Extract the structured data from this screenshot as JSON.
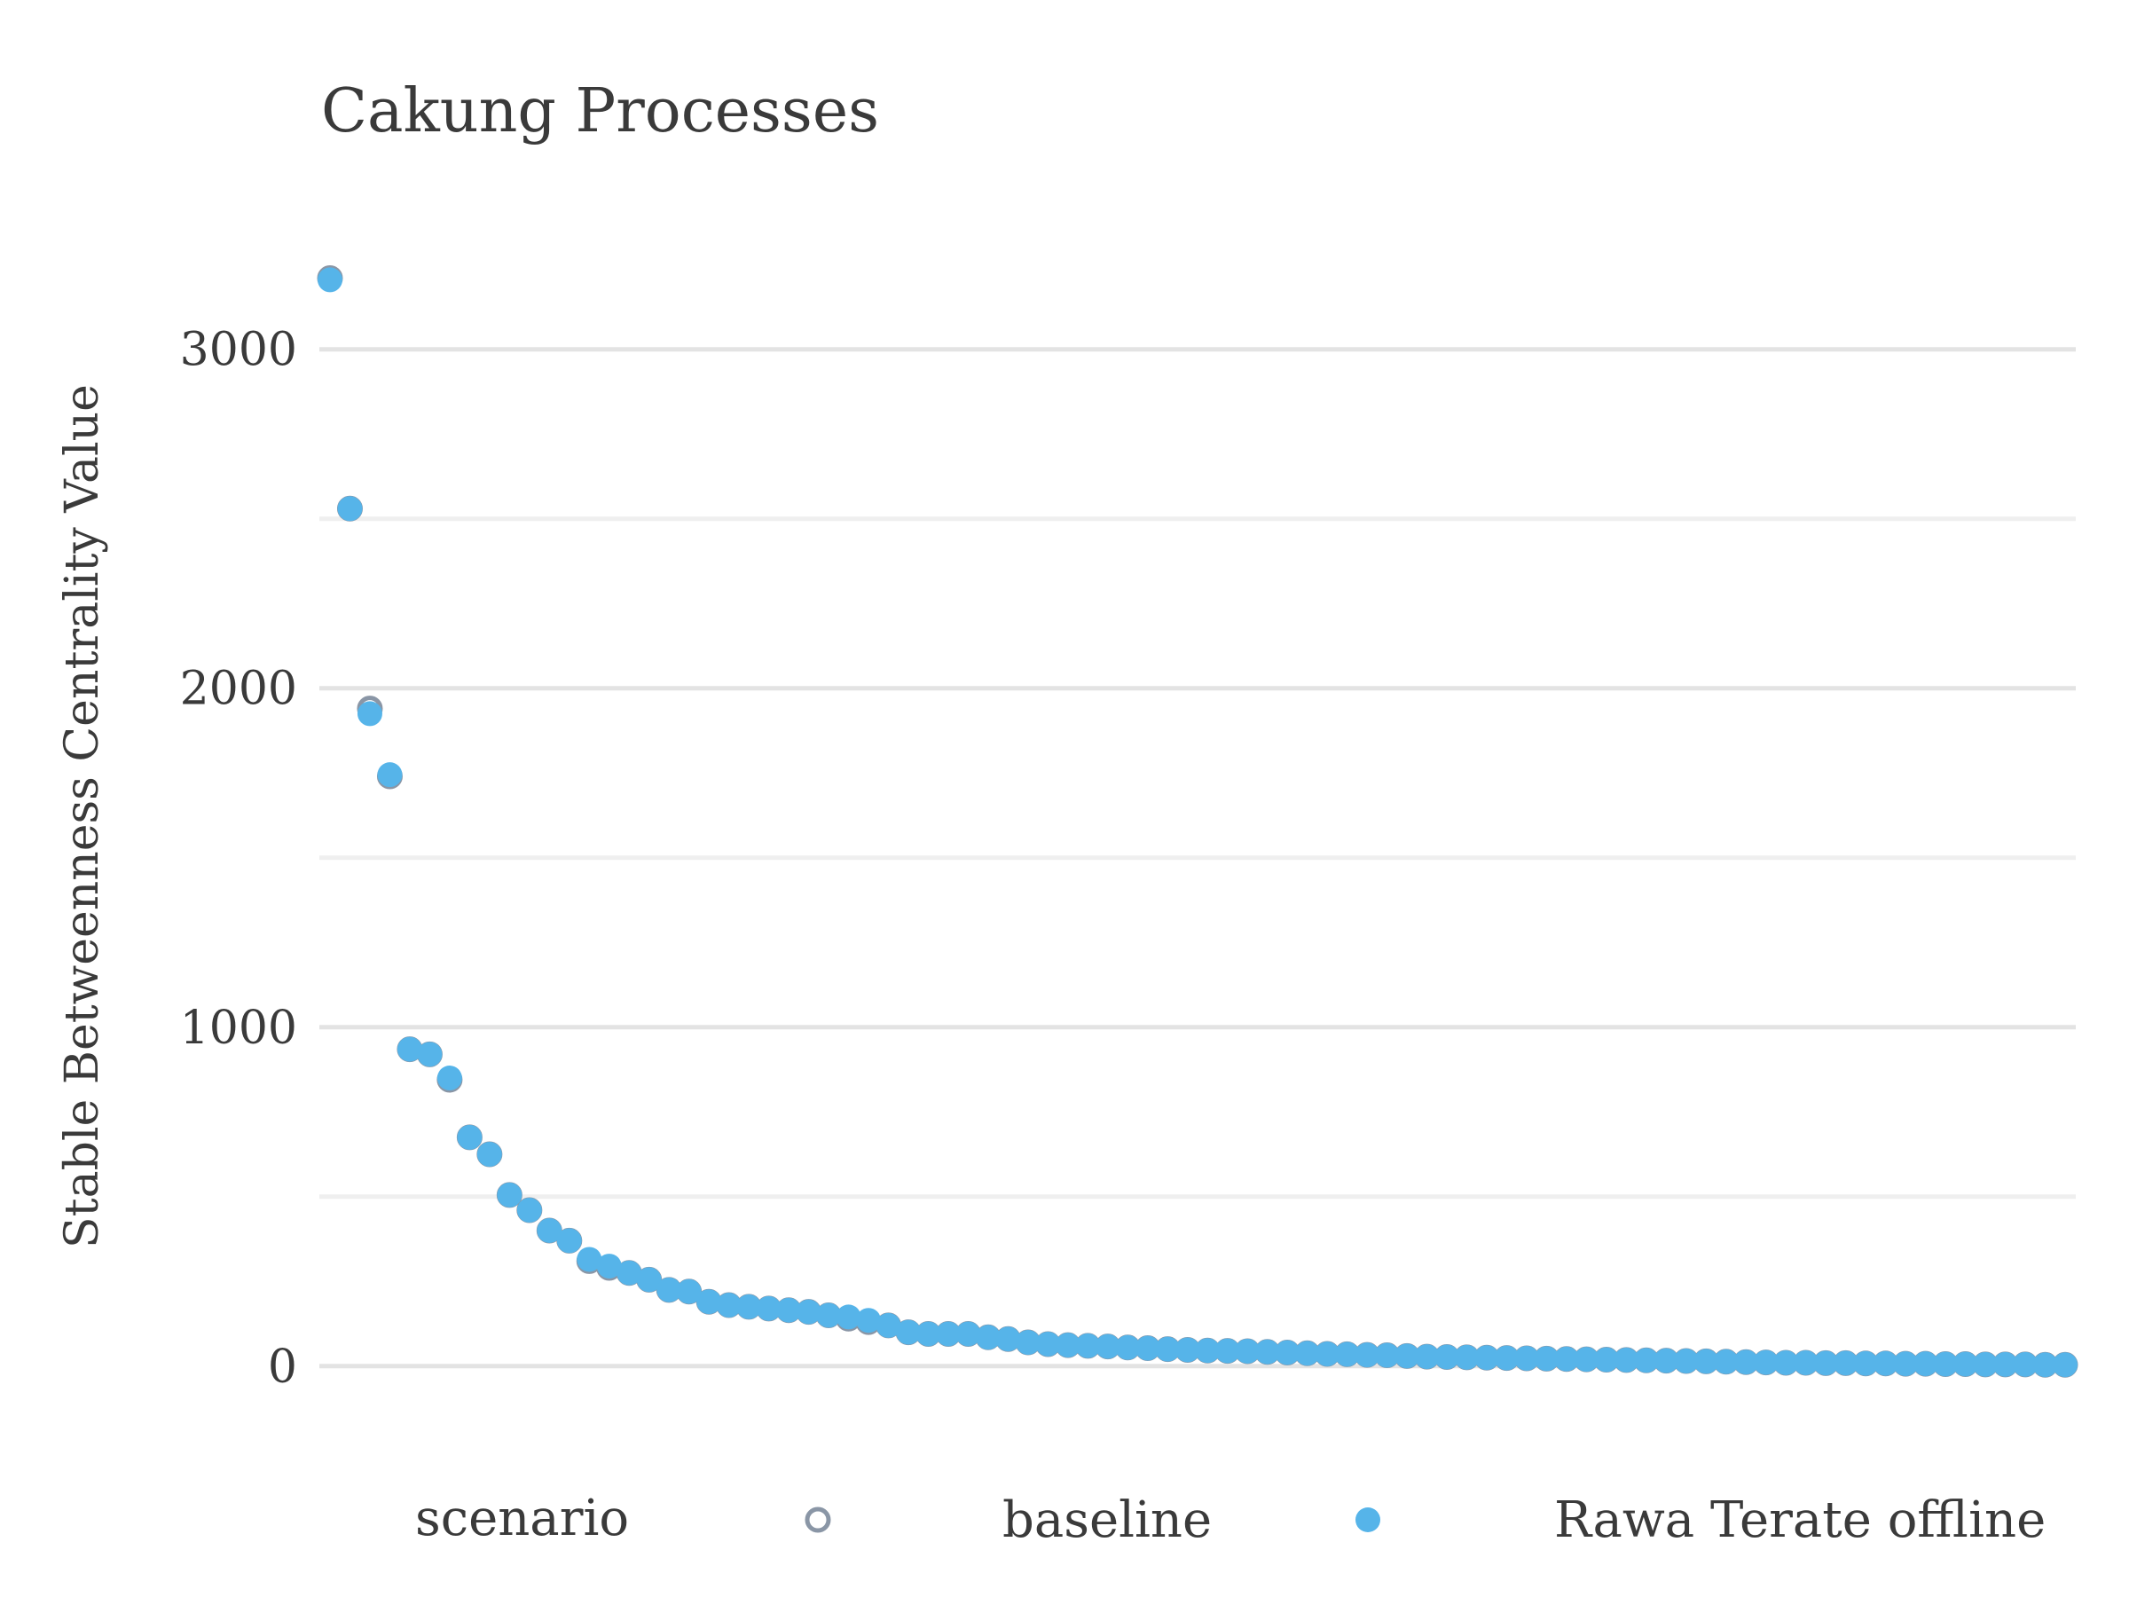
{
  "chart_data": {
    "type": "scatter",
    "title": "Cakung Processes",
    "xlabel": "",
    "ylabel": "Stable Betweenness Centrality Value",
    "ylim": [
      -210,
      3350
    ],
    "yticks": [
      0,
      1000,
      2000,
      3000
    ],
    "grid": true,
    "legend": {
      "title": "scenario",
      "position": "bottom",
      "entries": [
        {
          "name": "baseline",
          "marker": "open-circle",
          "color": "#8a96a6"
        },
        {
          "name": "Rawa Terate offline",
          "marker": "filled-circle",
          "color": "#56b4e9"
        }
      ]
    },
    "series": [
      {
        "name": "baseline",
        "color": "#8a96a6",
        "x": [
          1,
          2,
          3,
          4,
          5,
          6,
          7,
          8,
          9,
          10,
          11,
          12,
          13,
          14,
          15,
          16,
          17,
          18,
          19,
          20,
          21,
          22,
          23,
          24,
          25,
          26,
          27,
          28,
          29,
          30,
          31,
          32,
          33,
          34,
          35,
          36,
          37,
          38,
          39,
          40,
          41,
          42,
          43,
          44,
          45,
          46,
          47,
          48,
          49,
          50,
          51,
          52,
          53,
          54,
          55,
          56,
          57,
          58,
          59,
          60,
          61,
          62,
          63,
          64,
          65,
          66,
          67,
          68,
          69,
          70,
          71,
          72,
          73,
          74,
          75,
          76,
          77,
          78,
          79,
          80,
          81,
          82,
          83,
          84,
          85,
          86,
          87,
          88
        ],
        "values": [
          3210,
          2530,
          1940,
          1740,
          935,
          920,
          845,
          675,
          625,
          505,
          460,
          400,
          370,
          310,
          290,
          275,
          255,
          225,
          220,
          190,
          180,
          175,
          170,
          165,
          160,
          150,
          140,
          130,
          120,
          100,
          95,
          95,
          95,
          85,
          80,
          70,
          65,
          62,
          60,
          58,
          55,
          53,
          50,
          48,
          46,
          45,
          44,
          42,
          40,
          38,
          36,
          35,
          33,
          32,
          30,
          28,
          27,
          26,
          25,
          24,
          23,
          22,
          21,
          20,
          19,
          18,
          17,
          16,
          15,
          14,
          13,
          12,
          11,
          10,
          10,
          9,
          9,
          8,
          8,
          7,
          7,
          6,
          6,
          5,
          5,
          5,
          4,
          4
        ]
      },
      {
        "name": "Rawa Terate offline",
        "color": "#56b4e9",
        "x": [
          1,
          2,
          3,
          4,
          5,
          6,
          7,
          8,
          9,
          10,
          11,
          12,
          13,
          14,
          15,
          16,
          17,
          18,
          19,
          20,
          21,
          22,
          23,
          24,
          25,
          26,
          27,
          28,
          29,
          30,
          31,
          32,
          33,
          34,
          35,
          36,
          37,
          38,
          39,
          40,
          41,
          42,
          43,
          44,
          45,
          46,
          47,
          48,
          49,
          50,
          51,
          52,
          53,
          54,
          55,
          56,
          57,
          58,
          59,
          60,
          61,
          62,
          63,
          64,
          65,
          66,
          67,
          68,
          69,
          70,
          71,
          72,
          73,
          74,
          75,
          76,
          77,
          78,
          79,
          80,
          81,
          82,
          83,
          84,
          85,
          86,
          87,
          88
        ],
        "values": [
          3205,
          2530,
          1925,
          1745,
          935,
          920,
          850,
          675,
          625,
          505,
          460,
          400,
          370,
          315,
          295,
          275,
          255,
          225,
          220,
          190,
          180,
          175,
          170,
          165,
          160,
          150,
          145,
          135,
          120,
          100,
          95,
          95,
          95,
          85,
          80,
          70,
          65,
          62,
          60,
          58,
          55,
          53,
          50,
          48,
          46,
          45,
          44,
          42,
          40,
          38,
          36,
          35,
          33,
          32,
          30,
          28,
          27,
          26,
          25,
          24,
          23,
          22,
          21,
          20,
          19,
          18,
          17,
          16,
          15,
          14,
          13,
          12,
          11,
          10,
          10,
          9,
          9,
          8,
          8,
          7,
          7,
          6,
          6,
          5,
          5,
          5,
          4,
          4
        ]
      }
    ]
  }
}
